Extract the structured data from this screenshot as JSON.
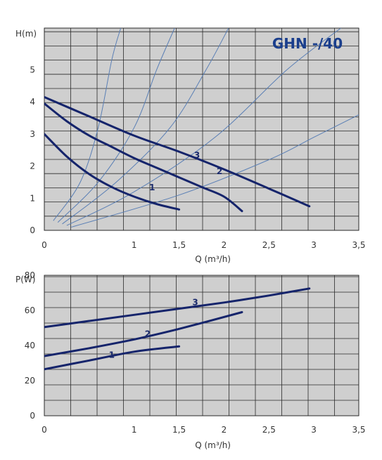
{
  "colors": {
    "plot_bg": "#cfcfcf",
    "grid": "#2a2a2a",
    "curve": "#15246b",
    "system_curve": "#5a7fb5",
    "title": "#1a3e8c"
  },
  "chart_data": [
    {
      "type": "line",
      "title": "GHN -/40",
      "xlabel": "Q (m³/h)",
      "ylabel": "H(m)",
      "xlim": [
        0,
        3.5
      ],
      "ylim": [
        0,
        6.3
      ],
      "grid": true,
      "x_ticks": [
        "0",
        "1",
        "1,5",
        "2",
        "2,5",
        "3",
        "3,5"
      ],
      "x_tick_values": [
        0,
        1,
        1.5,
        2,
        2.5,
        3,
        3.5
      ],
      "y_ticks": [
        "0",
        "1",
        "2",
        "3",
        "4",
        "5"
      ],
      "y_tick_values": [
        0,
        1,
        2,
        3,
        4,
        5
      ],
      "series": [
        {
          "name": "1",
          "label_at": [
            1.2,
            1.25
          ],
          "points": [
            [
              0,
              3.0
            ],
            [
              0.25,
              2.3
            ],
            [
              0.5,
              1.75
            ],
            [
              0.75,
              1.35
            ],
            [
              1.0,
              1.05
            ],
            [
              1.25,
              0.82
            ],
            [
              1.5,
              0.65
            ]
          ]
        },
        {
          "name": "2",
          "label_at": [
            1.95,
            1.75
          ],
          "points": [
            [
              0,
              3.95
            ],
            [
              0.25,
              3.4
            ],
            [
              0.5,
              2.95
            ],
            [
              0.75,
              2.6
            ],
            [
              1.0,
              2.25
            ],
            [
              1.25,
              1.95
            ],
            [
              1.5,
              1.65
            ],
            [
              1.75,
              1.35
            ],
            [
              2.0,
              1.05
            ],
            [
              2.2,
              0.6
            ]
          ]
        },
        {
          "name": "3",
          "label_at": [
            1.7,
            2.25
          ],
          "points": [
            [
              0,
              4.15
            ],
            [
              0.5,
              3.55
            ],
            [
              1.0,
              2.95
            ],
            [
              1.5,
              2.45
            ],
            [
              2.0,
              1.9
            ],
            [
              2.5,
              1.3
            ],
            [
              2.95,
              0.75
            ]
          ]
        }
      ],
      "system_curves": [
        [
          [
            0.1,
            0.3
          ],
          [
            0.4,
            1.5
          ],
          [
            0.6,
            3.2
          ],
          [
            0.75,
            5.3
          ],
          [
            0.85,
            6.3
          ]
        ],
        [
          [
            0.15,
            0.25
          ],
          [
            0.6,
            1.5
          ],
          [
            1.0,
            3.2
          ],
          [
            1.25,
            5.0
          ],
          [
            1.45,
            6.3
          ]
        ],
        [
          [
            0.2,
            0.2
          ],
          [
            0.8,
            1.5
          ],
          [
            1.4,
            3.2
          ],
          [
            1.8,
            5.0
          ],
          [
            2.05,
            6.3
          ]
        ],
        [
          [
            0.25,
            0.15
          ],
          [
            1.0,
            1.2
          ],
          [
            1.9,
            2.9
          ],
          [
            2.7,
            5.0
          ],
          [
            3.3,
            6.3
          ]
        ],
        [
          [
            0.3,
            0.1
          ],
          [
            1.5,
            1.1
          ],
          [
            2.5,
            2.2
          ],
          [
            3.0,
            2.9
          ],
          [
            3.5,
            3.6
          ]
        ]
      ]
    },
    {
      "type": "line",
      "title": "",
      "xlabel": "Q (m³/h)",
      "ylabel": "P(W)",
      "xlim": [
        0,
        3.5
      ],
      "ylim": [
        0,
        80
      ],
      "grid": true,
      "x_ticks": [
        "0",
        "1",
        "1,5",
        "2",
        "2,5",
        "3",
        "3,5"
      ],
      "x_tick_values": [
        0,
        1,
        1.5,
        2,
        2.5,
        3,
        3.5
      ],
      "y_ticks": [
        "0",
        "20",
        "40",
        "60",
        "80"
      ],
      "y_tick_values": [
        0,
        20,
        40,
        60,
        80
      ],
      "series": [
        {
          "name": "1",
          "label_at": [
            0.75,
            33
          ],
          "points": [
            [
              0,
              26.5
            ],
            [
              0.5,
              31.5
            ],
            [
              1.0,
              36.5
            ],
            [
              1.5,
              39.5
            ]
          ]
        },
        {
          "name": "2",
          "label_at": [
            1.15,
            45
          ],
          "points": [
            [
              0,
              34
            ],
            [
              0.5,
              38.5
            ],
            [
              1.0,
              43.5
            ],
            [
              1.5,
              49.5
            ],
            [
              2.2,
              59
            ]
          ]
        },
        {
          "name": "3",
          "label_at": [
            1.68,
            63
          ],
          "points": [
            [
              0,
              50.5
            ],
            [
              0.5,
              54
            ],
            [
              1.0,
              57.5
            ],
            [
              1.5,
              61
            ],
            [
              2.0,
              64.5
            ],
            [
              2.5,
              68.5
            ],
            [
              2.95,
              72.5
            ]
          ]
        }
      ]
    }
  ]
}
